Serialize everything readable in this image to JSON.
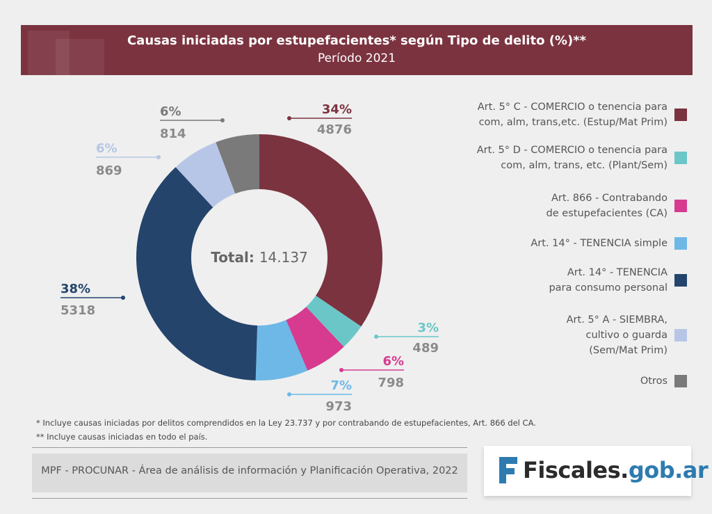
{
  "header": {
    "title": "Causas iniciadas por estupefacientes* según Tipo de delito (%)**",
    "subtitle": "Período 2021"
  },
  "chart_data": {
    "type": "pie",
    "center_label": "Total:",
    "center_value": "14.137",
    "series": [
      {
        "name": "Art. 5° C - COMERCIO o tenencia para\ncom, alm, trans,etc. (Estup/Mat Prim)",
        "value": 4876,
        "percent_label": "34%",
        "count_label": "4876",
        "color": "#7b3340"
      },
      {
        "name": "Art. 5° D - COMERCIO o tenencia para\ncom, alm, trans, etc. (Plant/Sem)",
        "value": 489,
        "percent_label": "3%",
        "count_label": "489",
        "color": "#6bc7c7"
      },
      {
        "name": "Art. 866 - Contrabando\nde estupefacientes (CA)",
        "value": 798,
        "percent_label": "6%",
        "count_label": "798",
        "color": "#d63b8f"
      },
      {
        "name": "Art. 14° - TENENCIA simple",
        "value": 973,
        "percent_label": "7%",
        "count_label": "973",
        "color": "#6db8e6"
      },
      {
        "name": "Art. 14° - TENENCIA\npara consumo personal",
        "value": 5318,
        "percent_label": "38%",
        "count_label": "5318",
        "color": "#24446c"
      },
      {
        "name": "Art. 5° A - SIEMBRA,\ncultivo o guarda\n(Sem/Mat Prim)",
        "value": 869,
        "percent_label": "6%",
        "count_label": "869",
        "color": "#b7c6e6"
      },
      {
        "name": "Otros",
        "value": 814,
        "percent_label": "6%",
        "count_label": "814",
        "color": "#7a7a7a"
      }
    ]
  },
  "footnotes": {
    "note1": "* Incluye causas iniciadas por delitos comprendidos en la Ley 23.737 y por contrabando de estupefacientes, Art. 866 del CA.",
    "note2": "** Incluye causas iniciadas en todo el país."
  },
  "source": "MPF - PROCUNAR - Área de análisis de información y Planificación Operativa, 2022",
  "logo": {
    "part1": "Fiscales.",
    "part2": "gob.ar"
  }
}
